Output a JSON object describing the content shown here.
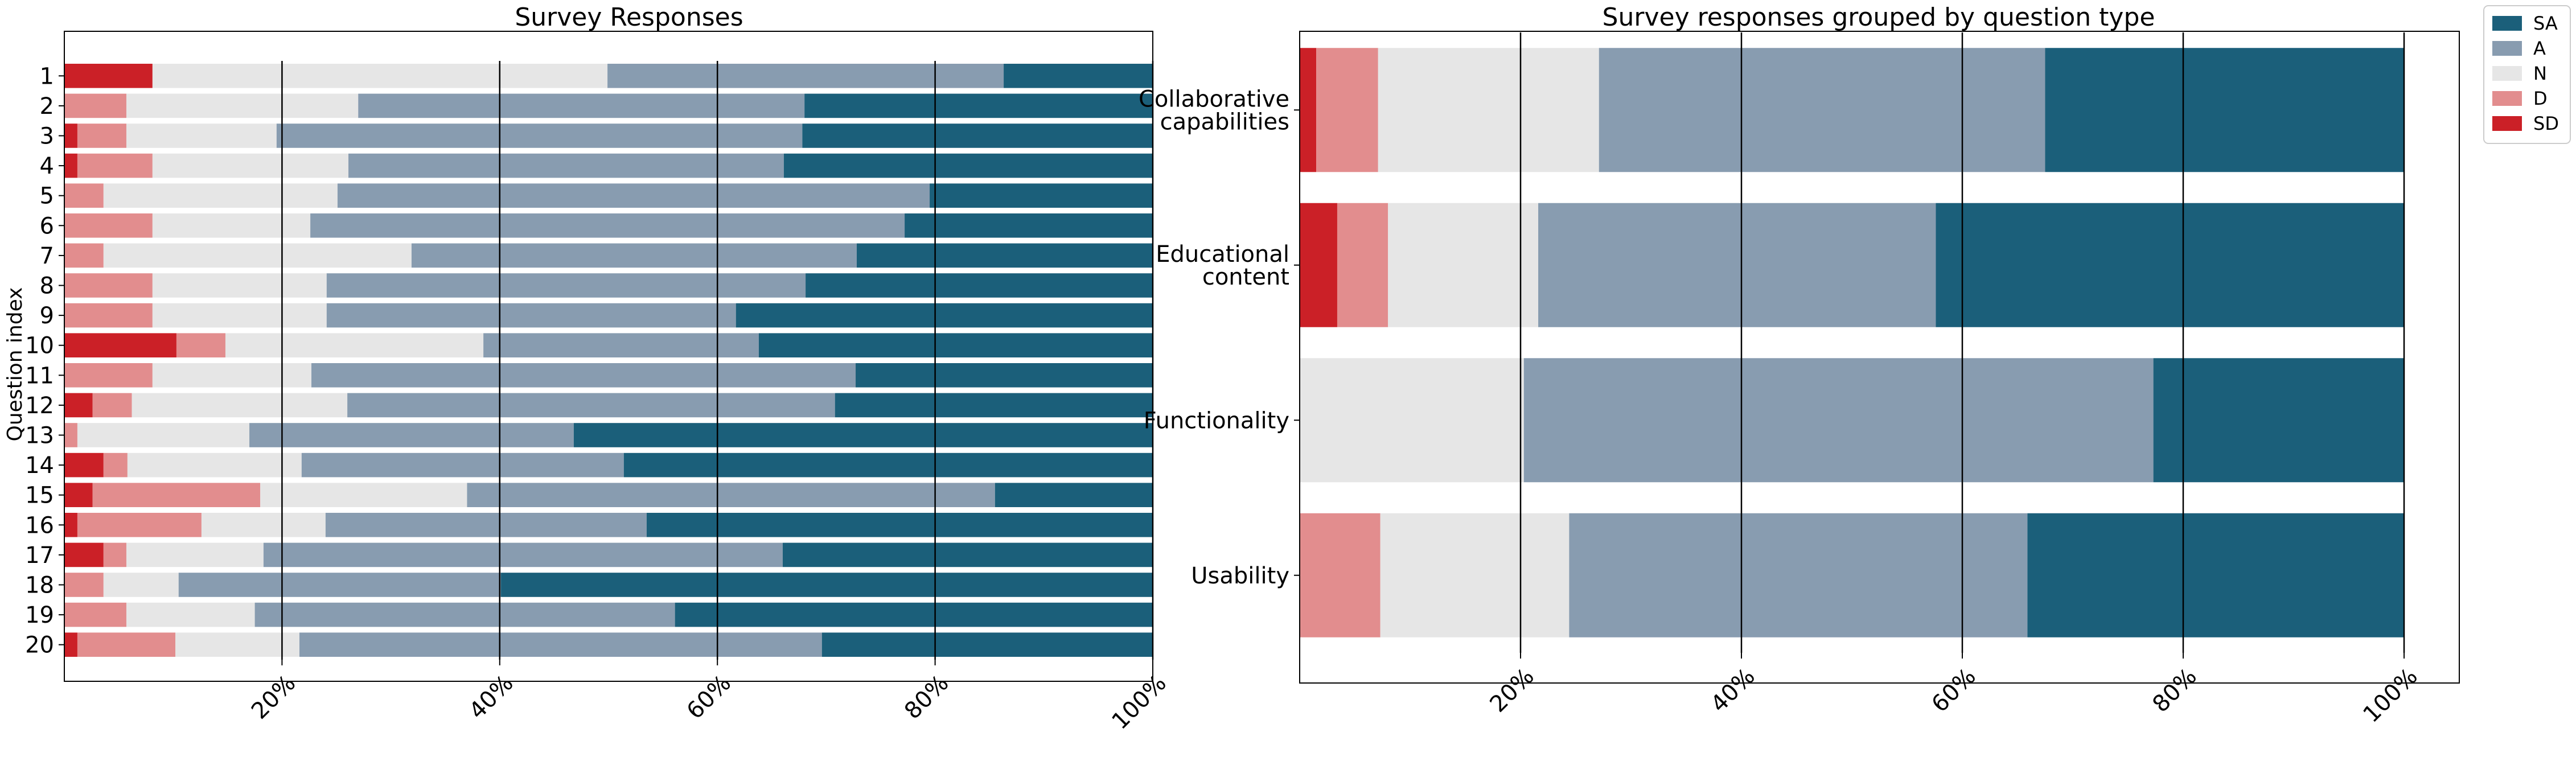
{
  "colors": {
    "SD": "#cb2027",
    "D": "#e28d8e",
    "N": "#e6e6e6",
    "A": "#889cb0",
    "SA": "#1b5f7a"
  },
  "legend": {
    "placement": "top-right outside",
    "order": [
      "SA",
      "A",
      "N",
      "D",
      "SD"
    ],
    "labels": {
      "SA": "SA",
      "A": "A",
      "N": "N",
      "D": "D",
      "SD": "SD"
    }
  },
  "chart_data": [
    {
      "type": "bar",
      "orientation": "horizontal",
      "stacked": true,
      "title": "Survey Responses",
      "xlabel": "",
      "ylabel": "Question index",
      "xlim": [
        0,
        1
      ],
      "x_ticks": [
        "20%",
        "40%",
        "60%",
        "80%",
        "100%"
      ],
      "x_tick_values": [
        0.2,
        0.4,
        0.6,
        0.8,
        1.0
      ],
      "grid": "vertical lines at x ticks",
      "categories": [
        "1",
        "2",
        "3",
        "4",
        "5",
        "6",
        "7",
        "8",
        "9",
        "10",
        "11",
        "12",
        "13",
        "14",
        "15",
        "16",
        "17",
        "18",
        "19",
        "20"
      ],
      "series": [
        {
          "name": "SD",
          "values": [
            0.081,
            0.0,
            0.012,
            0.012,
            0.0,
            0.0,
            0.0,
            0.0,
            0.0,
            0.103,
            0.0,
            0.026,
            0.0,
            0.036,
            0.026,
            0.012,
            0.036,
            0.0,
            0.0,
            0.012
          ]
        },
        {
          "name": "D",
          "values": [
            0.0,
            0.057,
            0.045,
            0.069,
            0.036,
            0.081,
            0.036,
            0.081,
            0.081,
            0.045,
            0.081,
            0.036,
            0.012,
            0.022,
            0.154,
            0.114,
            0.021,
            0.036,
            0.057,
            0.09
          ]
        },
        {
          "name": "N",
          "values": [
            0.418,
            0.213,
            0.138,
            0.18,
            0.215,
            0.145,
            0.283,
            0.16,
            0.16,
            0.237,
            0.146,
            0.198,
            0.158,
            0.16,
            0.19,
            0.114,
            0.126,
            0.069,
            0.118,
            0.114
          ]
        },
        {
          "name": "A",
          "values": [
            0.364,
            0.41,
            0.483,
            0.4,
            0.544,
            0.546,
            0.409,
            0.44,
            0.376,
            0.253,
            0.5,
            0.448,
            0.298,
            0.296,
            0.485,
            0.295,
            0.477,
            0.296,
            0.386,
            0.48
          ]
        },
        {
          "name": "SA",
          "values": [
            0.137,
            0.32,
            0.322,
            0.339,
            0.205,
            0.228,
            0.272,
            0.319,
            0.383,
            0.362,
            0.273,
            0.292,
            0.532,
            0.486,
            0.145,
            0.465,
            0.34,
            0.599,
            0.439,
            0.304
          ]
        }
      ]
    },
    {
      "type": "bar",
      "orientation": "horizontal",
      "stacked": true,
      "title": "Survey responses grouped by question type",
      "xlabel": "",
      "ylabel": "",
      "xlim": [
        0,
        1.05
      ],
      "x_ticks": [
        "20%",
        "40%",
        "60%",
        "80%",
        "100%"
      ],
      "x_tick_values": [
        0.2,
        0.4,
        0.6,
        0.8,
        1.0
      ],
      "grid": "vertical lines at x ticks",
      "categories": [
        "Collaborative\ncapabilities",
        "Educational\ncontent",
        "Functionality",
        "Usability"
      ],
      "series": [
        {
          "name": "SD",
          "values": [
            0.015,
            0.034,
            0.0,
            0.0
          ]
        },
        {
          "name": "D",
          "values": [
            0.056,
            0.046,
            0.0,
            0.073
          ]
        },
        {
          "name": "N",
          "values": [
            0.2,
            0.136,
            0.203,
            0.171
          ]
        },
        {
          "name": "A",
          "values": [
            0.404,
            0.36,
            0.57,
            0.415
          ]
        },
        {
          "name": "SA",
          "values": [
            0.325,
            0.424,
            0.227,
            0.341
          ]
        }
      ]
    }
  ]
}
